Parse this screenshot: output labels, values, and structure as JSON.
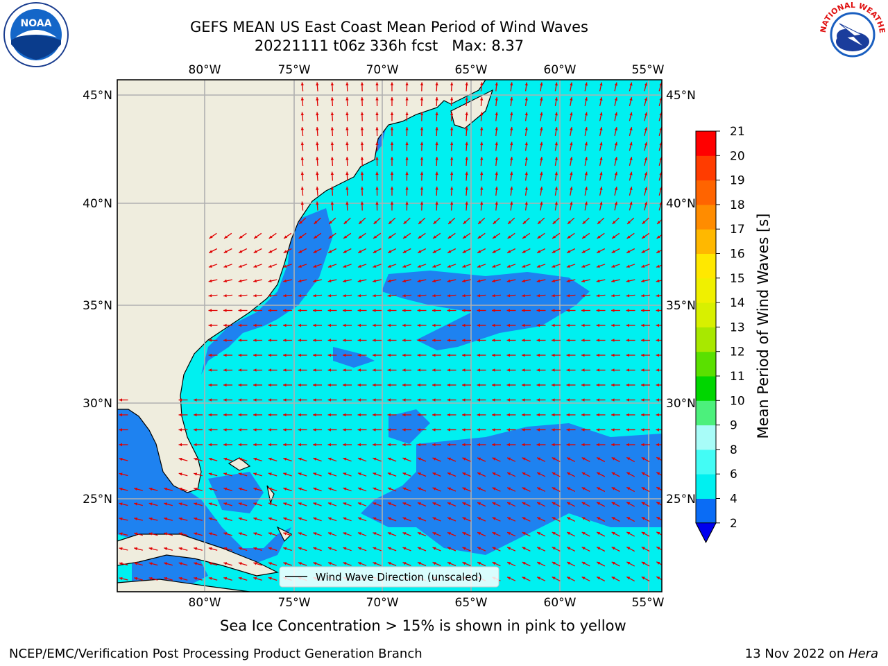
{
  "title": "GEFS MEAN US East Coast Mean Period of Wind Waves",
  "subtitle": "20221111 t06z 336h fcst   Max: 8.37",
  "ice_note": "Sea Ice Concentration > 15% is shown in pink to yellow",
  "footer_left": "NCEP/EMC/Verification Post Processing Product Generation Branch",
  "footer_date": "13 Nov 2022 on ",
  "footer_host": "Hera",
  "legend_label": "Wind Wave Direction (unscaled)",
  "colorbar": {
    "label": "Mean Period of Wind Waves [s]",
    "ticks": [
      "2",
      "4",
      "6",
      "8",
      "9",
      "10",
      "11",
      "12",
      "13",
      "14",
      "15",
      "16",
      "17",
      "18",
      "19",
      "20",
      "21"
    ],
    "colors": [
      "#0a6cf5",
      "#00f0f0",
      "#43fcf5",
      "#a8fcf8",
      "#4cf07c",
      "#00d600",
      "#5ae000",
      "#a8e800",
      "#d8f000",
      "#f0f000",
      "#ffe800",
      "#ffb800",
      "#ff8c00",
      "#ff6400",
      "#ff3c00",
      "#ff0000"
    ],
    "under_color": "#0000ee"
  },
  "map": {
    "lon_labels": [
      "80°W",
      "75°W",
      "70°W",
      "65°W",
      "60°W",
      "55°W"
    ],
    "lat_labels": [
      "45°N",
      "40°N",
      "35°N",
      "30°N",
      "25°N"
    ],
    "land_color": "#efedde",
    "ocean_color": "#00f0f0",
    "low_color": "#1e82f0",
    "arrow_color": "#e00000"
  },
  "logos": {
    "noaa_text": "NOAA",
    "nws_text": "NATIONAL WEATHER SERVICE"
  }
}
